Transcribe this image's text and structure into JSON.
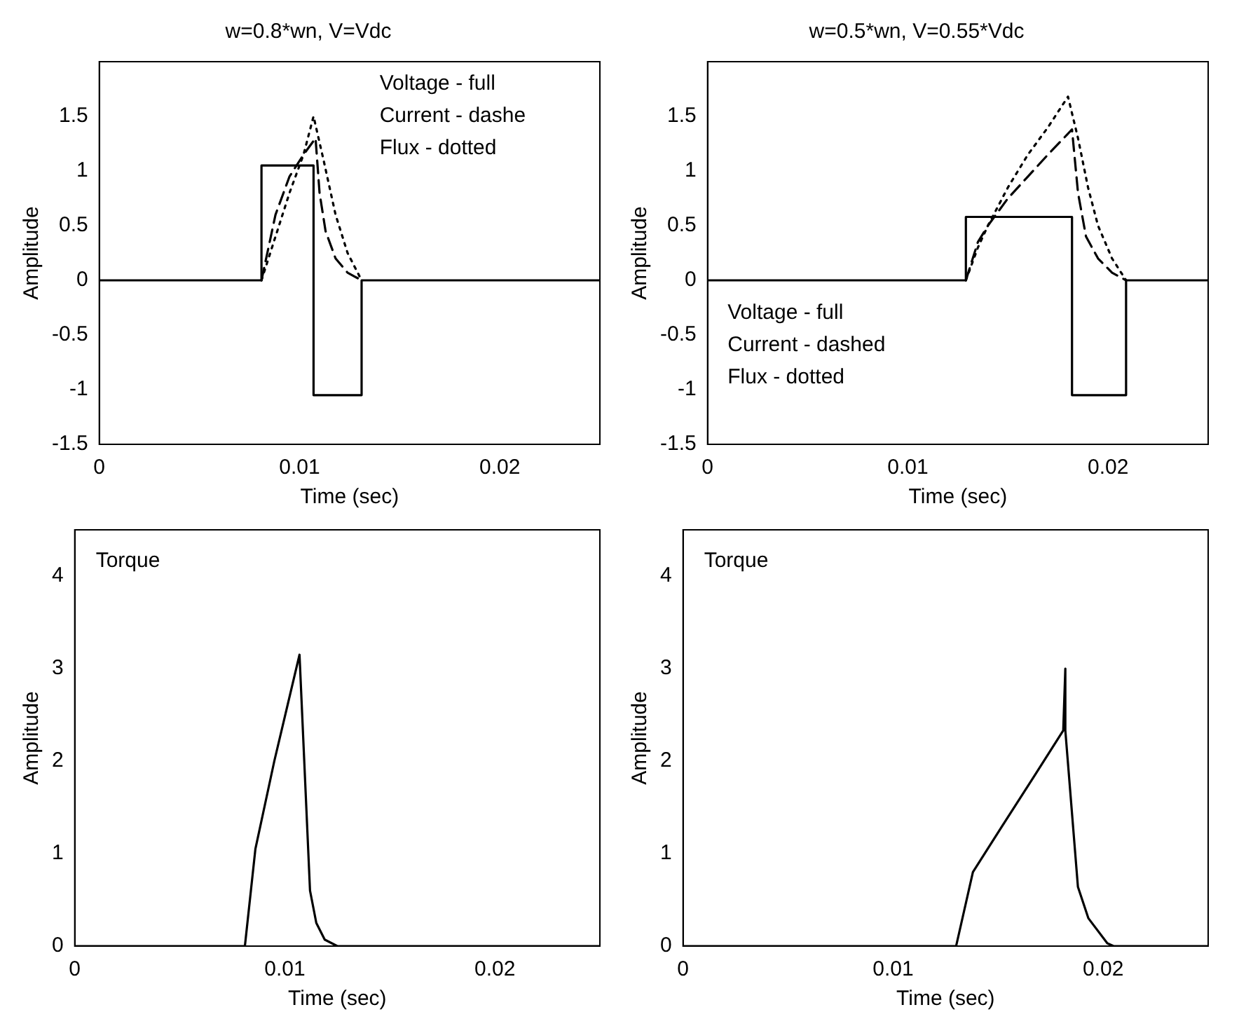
{
  "chart_data": [
    {
      "type": "line",
      "title": "w=0.8*wn, V=Vdc",
      "xlabel": "Time (sec)",
      "ylabel": "Amplitude",
      "xlim": [
        0,
        0.025
      ],
      "xticks": [
        0,
        0.01,
        0.02
      ],
      "ylim": [
        -1.5,
        2
      ],
      "yticks": [
        -1.5,
        -1,
        -0.5,
        0,
        0.5,
        1,
        1.5
      ],
      "grid": false,
      "legend": false,
      "annotations": [
        "Voltage - full",
        "Current - dashe",
        "Flux - dotted"
      ],
      "series": [
        {
          "color": "#000000",
          "line_style": "solid",
          "x": [
            0,
            0.0081,
            0.0081,
            0.0107,
            0.0107,
            0.0131,
            0.0131,
            0.025
          ],
          "values": [
            0,
            0,
            1.05,
            1.05,
            -1.05,
            -1.05,
            0,
            0
          ]
        },
        {
          "color": "#000000",
          "line_style": "dashed",
          "x": [
            0.0081,
            0.0088,
            0.0095,
            0.0102,
            0.0108,
            0.011,
            0.0113,
            0.0118,
            0.0124,
            0.0131
          ],
          "values": [
            0,
            0.6,
            0.95,
            1.15,
            1.3,
            0.8,
            0.45,
            0.2,
            0.07,
            0
          ]
        },
        {
          "color": "#000000",
          "line_style": "dotted",
          "x": [
            0.0081,
            0.0088,
            0.0095,
            0.0102,
            0.0107,
            0.0112,
            0.0118,
            0.0124,
            0.0131
          ],
          "values": [
            0,
            0.4,
            0.8,
            1.15,
            1.5,
            1.1,
            0.6,
            0.25,
            0
          ]
        }
      ]
    },
    {
      "type": "line",
      "title": "w=0.5*wn, V=0.55*Vdc",
      "xlabel": "Time (sec)",
      "ylabel": "Amplitude",
      "xlim": [
        0,
        0.025
      ],
      "xticks": [
        0,
        0.01,
        0.02
      ],
      "ylim": [
        -1.5,
        2
      ],
      "yticks": [
        -1.5,
        -1,
        -0.5,
        0,
        0.5,
        1,
        1.5
      ],
      "grid": false,
      "legend": false,
      "annotations": [
        "Voltage - full",
        "Current - dashed",
        "Flux - dotted"
      ],
      "series": [
        {
          "color": "#000000",
          "line_style": "solid",
          "x": [
            0,
            0.0129,
            0.0129,
            0.0182,
            0.0182,
            0.0209,
            0.0209,
            0.025
          ],
          "values": [
            0,
            0,
            0.58,
            0.58,
            -1.05,
            -1.05,
            0,
            0
          ]
        },
        {
          "color": "#000000",
          "line_style": "dashed",
          "x": [
            0.0129,
            0.0135,
            0.014,
            0.015,
            0.016,
            0.017,
            0.0182,
            0.0185,
            0.0189,
            0.0195,
            0.0202,
            0.0209
          ],
          "values": [
            0,
            0.35,
            0.5,
            0.75,
            0.95,
            1.15,
            1.38,
            0.8,
            0.4,
            0.2,
            0.07,
            0
          ]
        },
        {
          "color": "#000000",
          "line_style": "dotted",
          "x": [
            0.0129,
            0.0135,
            0.014,
            0.015,
            0.016,
            0.017,
            0.018,
            0.0185,
            0.019,
            0.0195,
            0.0202,
            0.0209
          ],
          "values": [
            0,
            0.3,
            0.5,
            0.85,
            1.15,
            1.4,
            1.68,
            1.3,
            0.85,
            0.5,
            0.2,
            0
          ]
        }
      ]
    },
    {
      "type": "line",
      "xlabel": "Time (sec)",
      "ylabel": "Amplitude",
      "xlim": [
        0,
        0.025
      ],
      "xticks": [
        0,
        0.01,
        0.02
      ],
      "ylim": [
        0,
        4.5
      ],
      "yticks": [
        0,
        1,
        2,
        3,
        4
      ],
      "grid": false,
      "legend": false,
      "annotations": [
        "Torque"
      ],
      "series": [
        {
          "color": "#000000",
          "line_style": "solid",
          "x": [
            0,
            0.0081,
            0.0086,
            0.0095,
            0.0107,
            0.0112,
            0.0115,
            0.0119,
            0.0125,
            0.025
          ],
          "values": [
            0,
            0,
            1.05,
            2,
            3.15,
            0.6,
            0.25,
            0.07,
            0,
            0
          ]
        }
      ]
    },
    {
      "type": "line",
      "xlabel": "Time (sec)",
      "ylabel": "Amplitude",
      "xlim": [
        0,
        0.025
      ],
      "xticks": [
        0,
        0.01,
        0.02
      ],
      "ylim": [
        0,
        4.5
      ],
      "yticks": [
        0,
        1,
        2,
        3,
        4
      ],
      "grid": false,
      "legend": false,
      "annotations": [
        "Torque"
      ],
      "series": [
        {
          "color": "#000000",
          "line_style": "solid",
          "x": [
            0,
            0.013,
            0.0138,
            0.0152,
            0.0167,
            0.0181,
            0.0182,
            0.0182,
            0.0188,
            0.0193,
            0.0202,
            0.0205,
            0.025
          ],
          "values": [
            0,
            0,
            0.8,
            1.3,
            1.83,
            2.33,
            3,
            2.33,
            0.64,
            0.3,
            0.03,
            0,
            0
          ]
        }
      ]
    }
  ]
}
